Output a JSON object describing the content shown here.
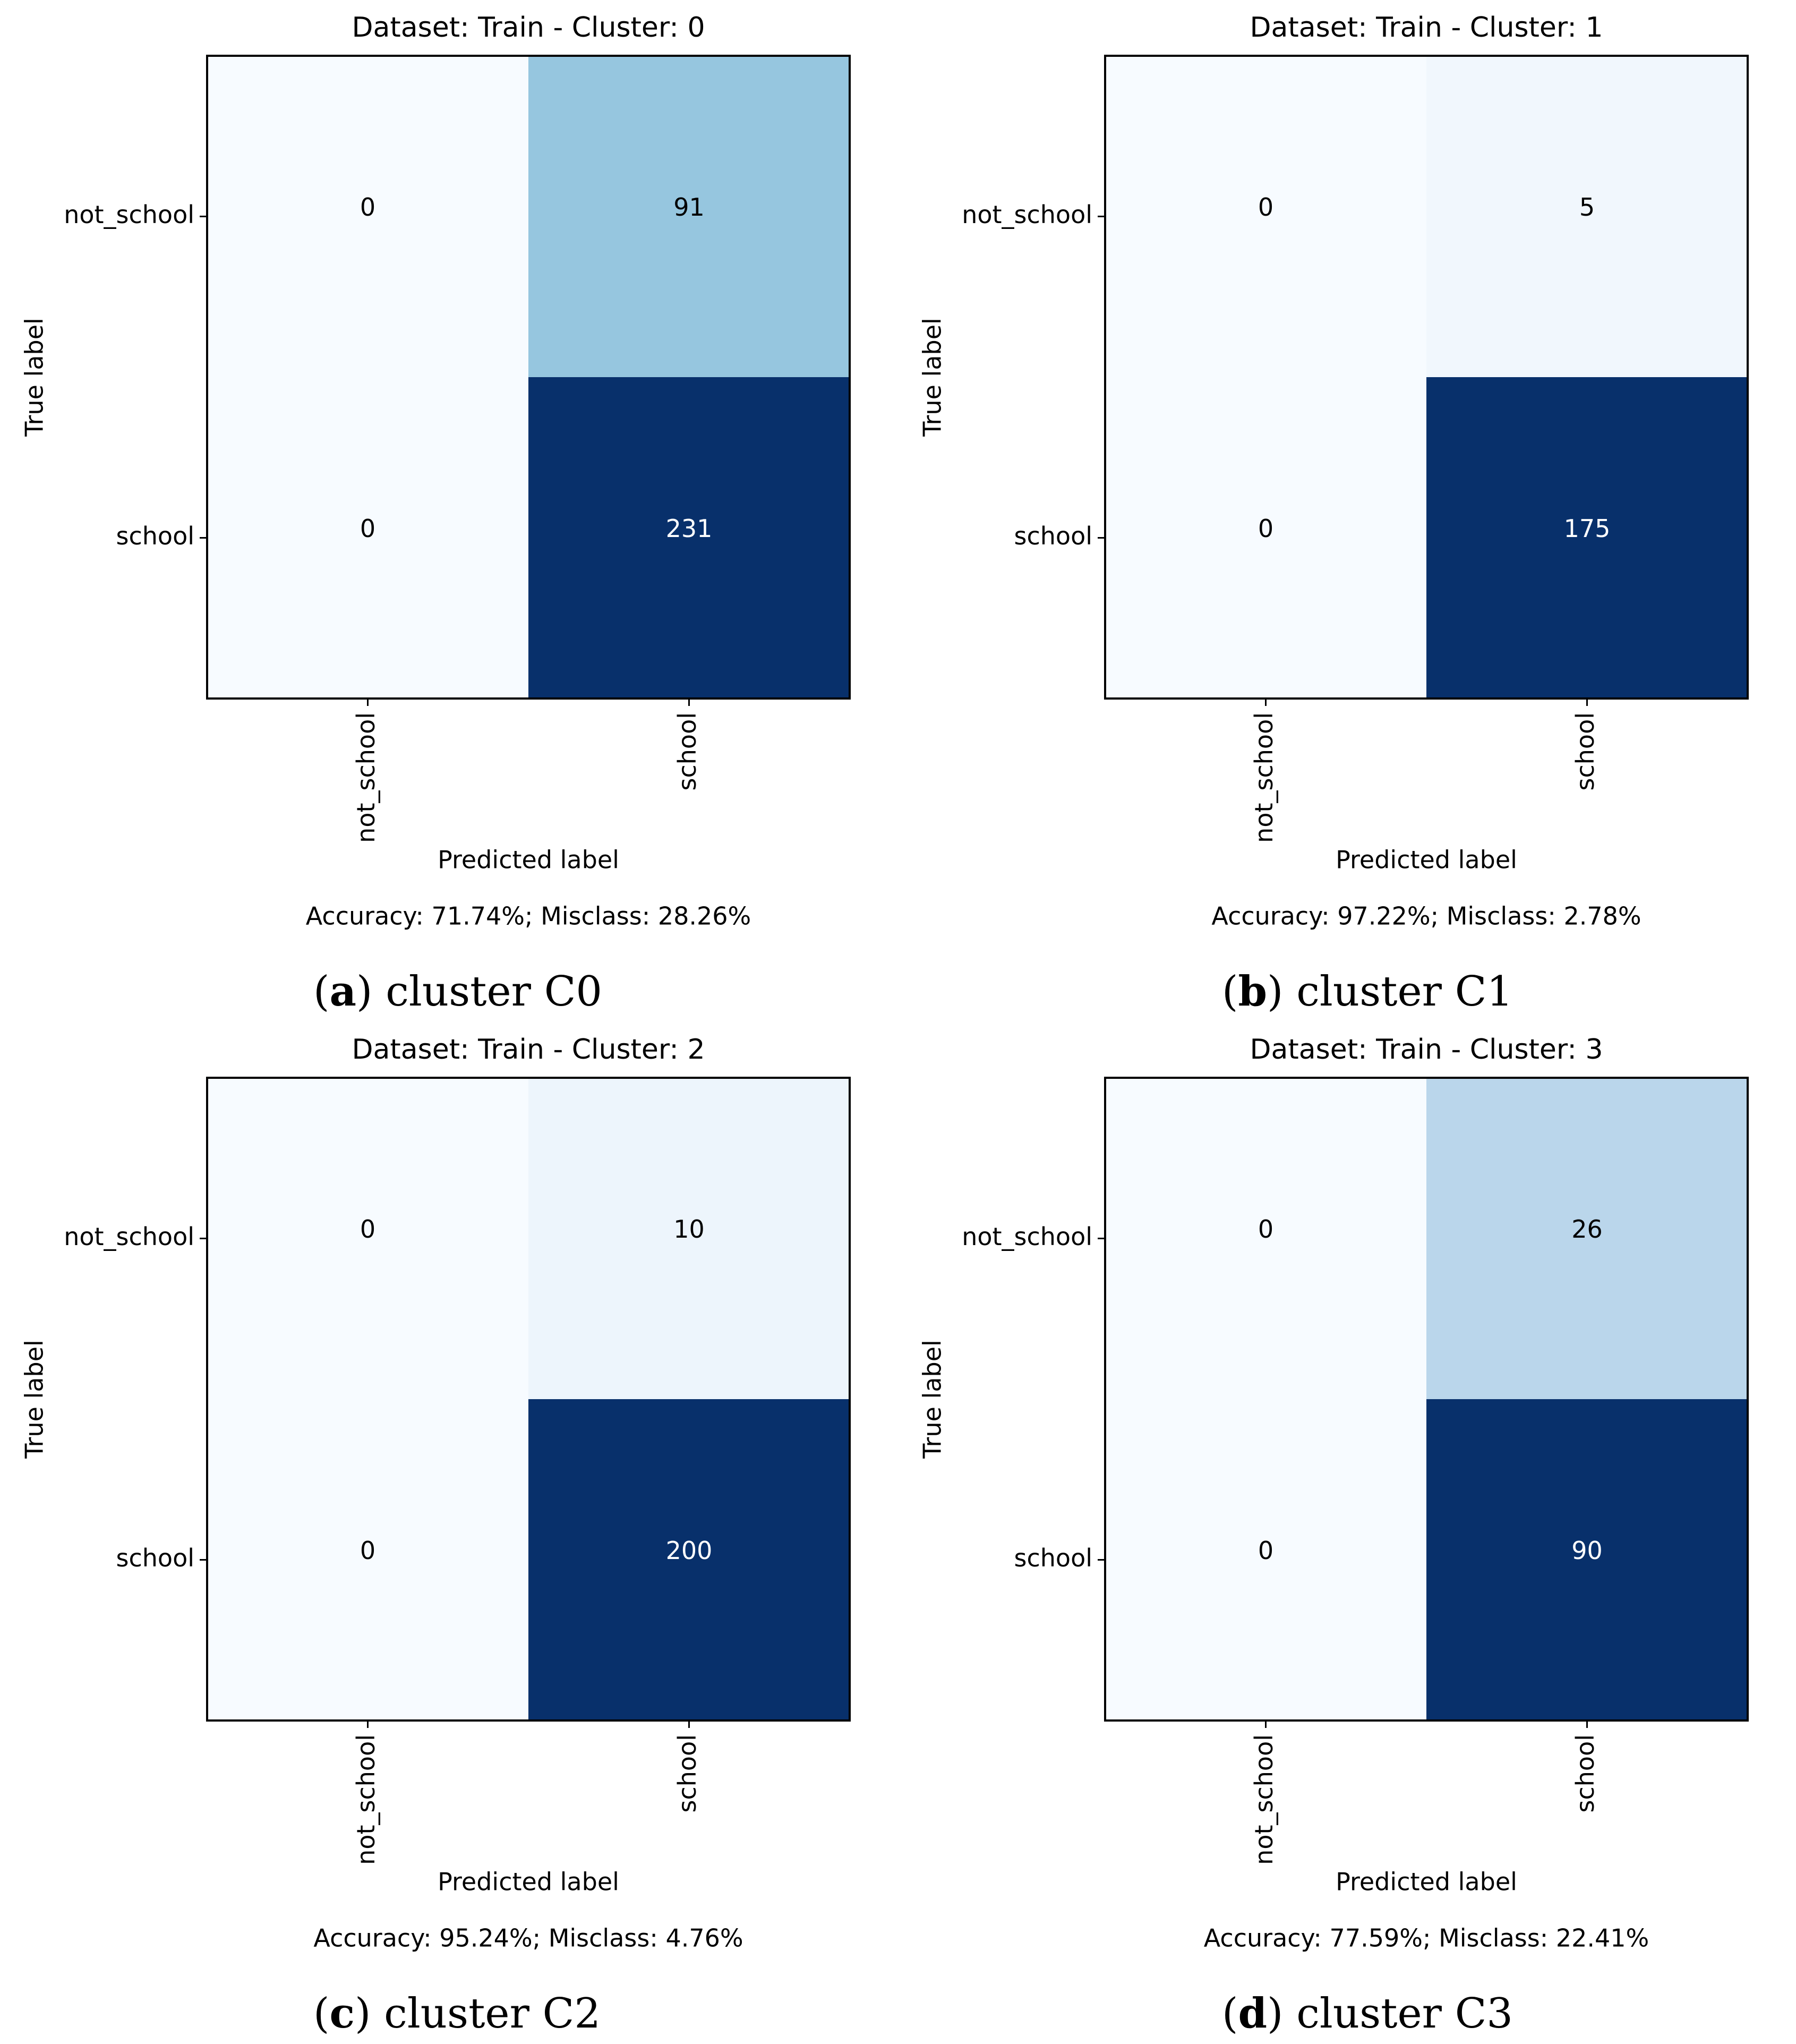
{
  "colors": {
    "cmap_low": "#f7fbff",
    "cmap_high": "#08306b",
    "text_dark": "#000000",
    "text_light": "#ffffff",
    "frame": "#000000"
  },
  "chart_data": [
    {
      "type": "heatmap",
      "title": "Dataset: Train - Cluster: 0",
      "xlabel": "Predicted label",
      "ylabel": "True label",
      "row_labels": [
        "not_school",
        "school"
      ],
      "col_labels": [
        "not_school",
        "school"
      ],
      "values": [
        [
          0,
          91
        ],
        [
          0,
          231
        ]
      ],
      "value_labels": [
        [
          "0",
          "91"
        ],
        [
          "0",
          "231"
        ]
      ],
      "summary": "Accuracy: 71.74%; Misclass: 28.26%",
      "caption": {
        "letter": "a",
        "text": "cluster C0"
      }
    },
    {
      "type": "heatmap",
      "title": "Dataset: Train - Cluster: 1",
      "xlabel": "Predicted label",
      "ylabel": "True label",
      "row_labels": [
        "not_school",
        "school"
      ],
      "col_labels": [
        "not_school",
        "school"
      ],
      "values": [
        [
          0,
          5
        ],
        [
          0,
          175
        ]
      ],
      "value_labels": [
        [
          "0",
          "5"
        ],
        [
          "0",
          "175"
        ]
      ],
      "summary": "Accuracy: 97.22%; Misclass: 2.78%",
      "caption": {
        "letter": "b",
        "text": "cluster C1"
      }
    },
    {
      "type": "heatmap",
      "title": "Dataset: Train - Cluster: 2",
      "xlabel": "Predicted label",
      "ylabel": "True label",
      "row_labels": [
        "not_school",
        "school"
      ],
      "col_labels": [
        "not_school",
        "school"
      ],
      "values": [
        [
          0,
          10
        ],
        [
          0,
          200
        ]
      ],
      "value_labels": [
        [
          "0",
          "10"
        ],
        [
          "0",
          "200"
        ]
      ],
      "summary": "Accuracy: 95.24%; Misclass: 4.76%",
      "caption": {
        "letter": "c",
        "text": "cluster C2"
      }
    },
    {
      "type": "heatmap",
      "title": "Dataset: Train - Cluster: 3",
      "xlabel": "Predicted label",
      "ylabel": "True label",
      "row_labels": [
        "not_school",
        "school"
      ],
      "col_labels": [
        "not_school",
        "school"
      ],
      "values": [
        [
          0,
          26
        ],
        [
          0,
          90
        ]
      ],
      "value_labels": [
        [
          "0",
          "26"
        ],
        [
          "0",
          "90"
        ]
      ],
      "summary": "Accuracy: 77.59%; Misclass: 22.41%",
      "caption": {
        "letter": "d",
        "text": "cluster C3"
      }
    }
  ]
}
